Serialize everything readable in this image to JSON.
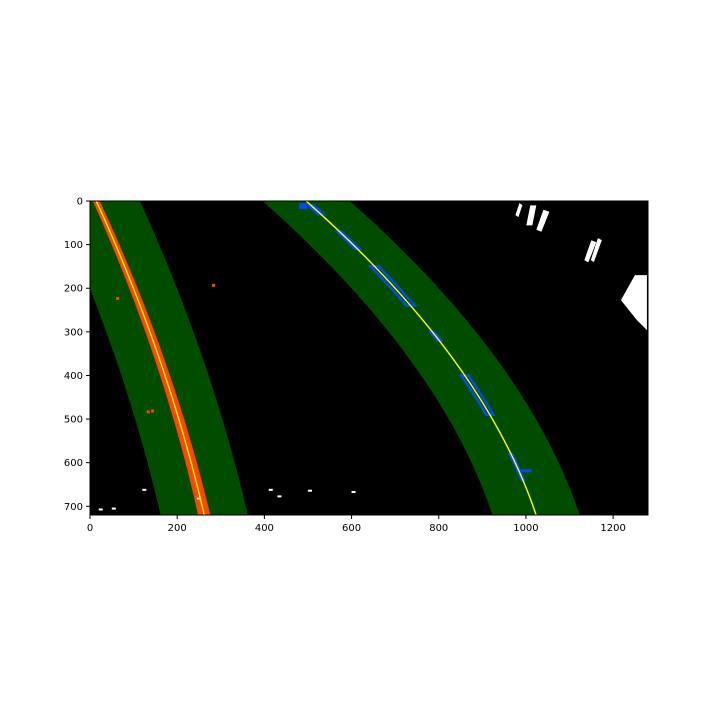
{
  "chart_data": {
    "type": "image",
    "title": "",
    "xlabel": "",
    "ylabel": "",
    "xlim": [
      0,
      1280
    ],
    "ylim": [
      720,
      0
    ],
    "x_ticks": [
      0,
      200,
      400,
      600,
      800,
      1000,
      1200
    ],
    "y_ticks": [
      0,
      100,
      200,
      300,
      400,
      500,
      600,
      700
    ],
    "background_color": "#000000",
    "window_color": "#004d00",
    "left_pixels_color": "#ff4500",
    "right_pixels_color": "#0047ff",
    "fit_line_color": "#ffff00",
    "other_pixels_color": "#ffffff",
    "margin": 100,
    "left_fit": {
      "y": [
        0,
        180,
        360,
        540,
        720
      ],
      "x": [
        15,
        90,
        160,
        215,
        262
      ]
    },
    "right_fit": {
      "y": [
        0,
        180,
        360,
        540,
        720
      ],
      "x": [
        500,
        670,
        840,
        945,
        1022
      ]
    }
  }
}
